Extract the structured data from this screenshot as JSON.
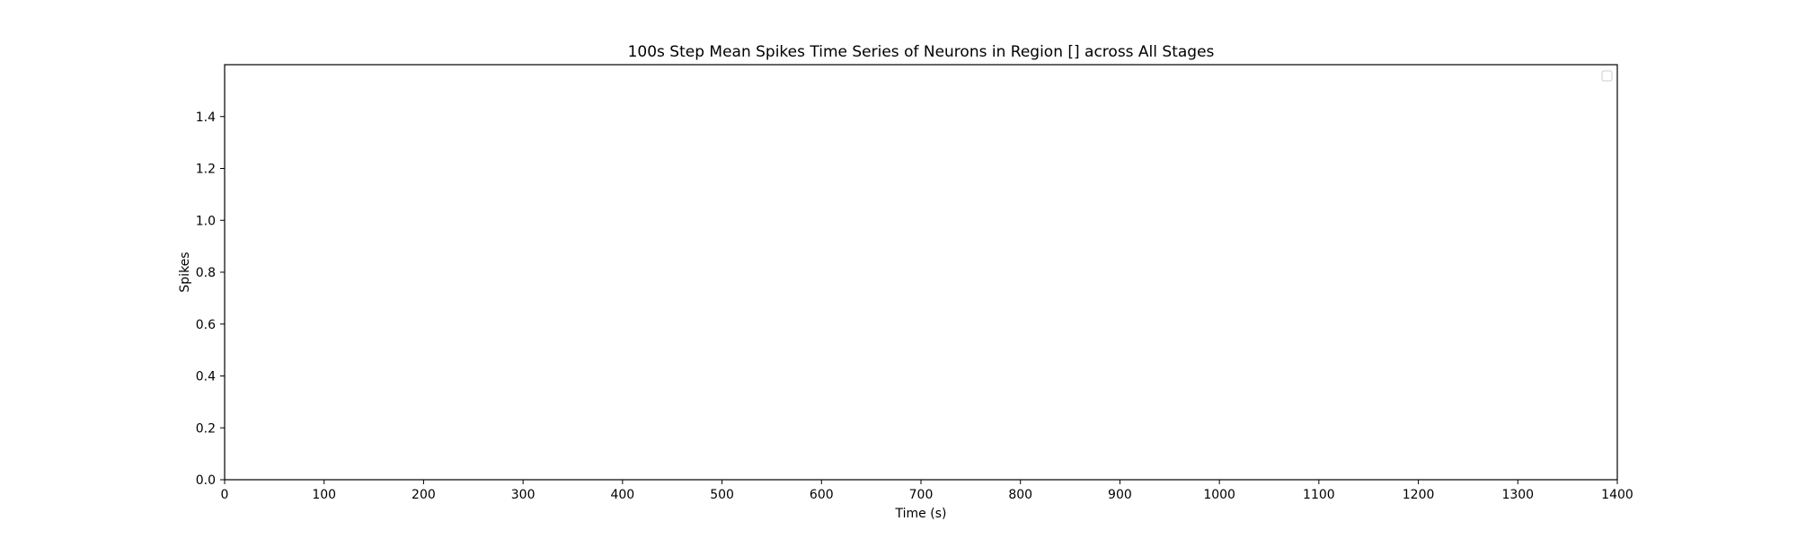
{
  "chart_data": {
    "type": "line",
    "title": "100s Step Mean Spikes Time Series of Neurons in Region [] across All Stages",
    "xlabel": "Time (s)",
    "ylabel": "Spikes",
    "xlim": [
      0,
      1400
    ],
    "ylim": [
      0,
      1.6
    ],
    "x_ticks": [
      0,
      100,
      200,
      300,
      400,
      500,
      600,
      700,
      800,
      900,
      1000,
      1100,
      1200,
      1300,
      1400
    ],
    "y_ticks": [
      0.0,
      0.2,
      0.4,
      0.6,
      0.8,
      1.0,
      1.2,
      1.4
    ],
    "x_tick_labels": [
      "0",
      "100",
      "200",
      "300",
      "400",
      "500",
      "600",
      "700",
      "800",
      "900",
      "1000",
      "1100",
      "1200",
      "1300",
      "1400"
    ],
    "y_tick_labels": [
      "0.0",
      "0.2",
      "0.4",
      "0.6",
      "0.8",
      "1.0",
      "1.2",
      "1.4"
    ],
    "series": [],
    "grid": false,
    "legend": {
      "position": "upper-right",
      "entries": []
    }
  },
  "colors": {
    "axis": "#000000",
    "background": "#ffffff",
    "legend_border": "#cccccc"
  }
}
